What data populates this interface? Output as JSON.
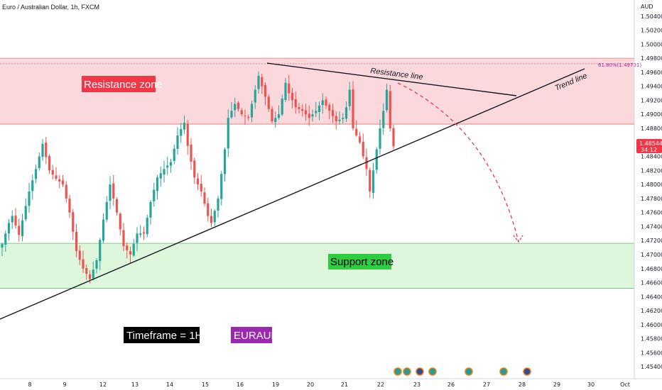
{
  "header": {
    "title": "Euro / Australian Dollar, 1h, FXCM",
    "currency": "AUD"
  },
  "colors": {
    "up": "#26a69a",
    "down": "#ef5350",
    "resistance_fill": "#f9c7cc",
    "support_fill": "#cff2cd",
    "price_tag": "#f23645"
  },
  "annotations": {
    "resistance_zone": "Resistance zone",
    "support_zone": "Support zone",
    "resistance_line": "Resistance line",
    "trend_line": "Trend line",
    "timeframe": "Timeframe = 1H",
    "symbol": "EURAUD",
    "fib_label": "61.80%(1.49721)"
  },
  "price_tag": {
    "price": "1.48544",
    "countdown": "34:12"
  },
  "chart_data": {
    "type": "candlestick",
    "y_ticks": [
      "1.45400",
      "1.45600",
      "1.45800",
      "1.46000",
      "1.46200",
      "1.46400",
      "1.46600",
      "1.46800",
      "1.47000",
      "1.47200",
      "1.47400",
      "1.47600",
      "1.47800",
      "1.48000",
      "1.48200",
      "1.48400",
      "1.48600",
      "1.48800",
      "1.49000",
      "1.49200",
      "1.49400",
      "1.49600",
      "1.49800",
      "1.50000",
      "1.50200",
      "1.50400"
    ],
    "x_ticks": [
      "8",
      "9",
      "12",
      "13",
      "14",
      "15",
      "16",
      "19",
      "20",
      "21",
      "22",
      "23",
      "26",
      "27",
      "28",
      "29",
      "30",
      "Oct"
    ],
    "ylim": [
      1.4525,
      1.5055
    ],
    "resistance_zone": [
      1.4886,
      1.498
    ],
    "support_zone": [
      1.4652,
      1.4716
    ],
    "fib_level": 1.49721,
    "last_price": 1.48544,
    "close_path": [
      {
        "x": 0,
        "y": 1.4715
      },
      {
        "x": 2,
        "y": 1.4745
      },
      {
        "x": 3,
        "y": 1.4755
      },
      {
        "x": 5,
        "y": 1.4728
      },
      {
        "x": 8,
        "y": 1.479
      },
      {
        "x": 10,
        "y": 1.4822
      },
      {
        "x": 12,
        "y": 1.4858
      },
      {
        "x": 14,
        "y": 1.482
      },
      {
        "x": 16,
        "y": 1.4808
      },
      {
        "x": 18,
        "y": 1.48
      },
      {
        "x": 20,
        "y": 1.476
      },
      {
        "x": 22,
        "y": 1.4705
      },
      {
        "x": 24,
        "y": 1.468
      },
      {
        "x": 26,
        "y": 1.4665
      },
      {
        "x": 28,
        "y": 1.4692
      },
      {
        "x": 30,
        "y": 1.475
      },
      {
        "x": 32,
        "y": 1.48
      },
      {
        "x": 34,
        "y": 1.476
      },
      {
        "x": 36,
        "y": 1.4712
      },
      {
        "x": 38,
        "y": 1.47
      },
      {
        "x": 40,
        "y": 1.473
      },
      {
        "x": 42,
        "y": 1.473
      },
      {
        "x": 44,
        "y": 1.4775
      },
      {
        "x": 46,
        "y": 1.481
      },
      {
        "x": 48,
        "y": 1.4822
      },
      {
        "x": 50,
        "y": 1.4832
      },
      {
        "x": 52,
        "y": 1.487
      },
      {
        "x": 54,
        "y": 1.4888
      },
      {
        "x": 55,
        "y": 1.4855
      },
      {
        "x": 57,
        "y": 1.481
      },
      {
        "x": 59,
        "y": 1.479
      },
      {
        "x": 61,
        "y": 1.4755
      },
      {
        "x": 62,
        "y": 1.4745
      },
      {
        "x": 64,
        "y": 1.478
      },
      {
        "x": 66,
        "y": 1.485
      },
      {
        "x": 67,
        "y": 1.4895
      },
      {
        "x": 69,
        "y": 1.4915
      },
      {
        "x": 71,
        "y": 1.49
      },
      {
        "x": 73,
        "y": 1.4895
      },
      {
        "x": 75,
        "y": 1.4935
      },
      {
        "x": 76,
        "y": 1.4955
      },
      {
        "x": 78,
        "y": 1.4925
      },
      {
        "x": 80,
        "y": 1.489
      },
      {
        "x": 82,
        "y": 1.49
      },
      {
        "x": 84,
        "y": 1.4945
      },
      {
        "x": 85,
        "y": 1.493
      },
      {
        "x": 87,
        "y": 1.491
      },
      {
        "x": 89,
        "y": 1.4905
      },
      {
        "x": 91,
        "y": 1.4895
      },
      {
        "x": 93,
        "y": 1.4905
      },
      {
        "x": 95,
        "y": 1.492
      },
      {
        "x": 97,
        "y": 1.4905
      },
      {
        "x": 99,
        "y": 1.489
      },
      {
        "x": 101,
        "y": 1.4895
      },
      {
        "x": 102,
        "y": 1.491
      },
      {
        "x": 103,
        "y": 1.4935
      },
      {
        "x": 104,
        "y": 1.488
      },
      {
        "x": 106,
        "y": 1.486
      },
      {
        "x": 107,
        "y": 1.484
      },
      {
        "x": 108,
        "y": 1.4822
      },
      {
        "x": 109,
        "y": 1.479
      },
      {
        "x": 110,
        "y": 1.482
      },
      {
        "x": 111,
        "y": 1.485
      },
      {
        "x": 112,
        "y": 1.488
      },
      {
        "x": 113,
        "y": 1.4905
      },
      {
        "x": 114,
        "y": 1.4935
      },
      {
        "x": 115,
        "y": 1.488
      },
      {
        "x": 116,
        "y": 1.4855
      }
    ]
  }
}
